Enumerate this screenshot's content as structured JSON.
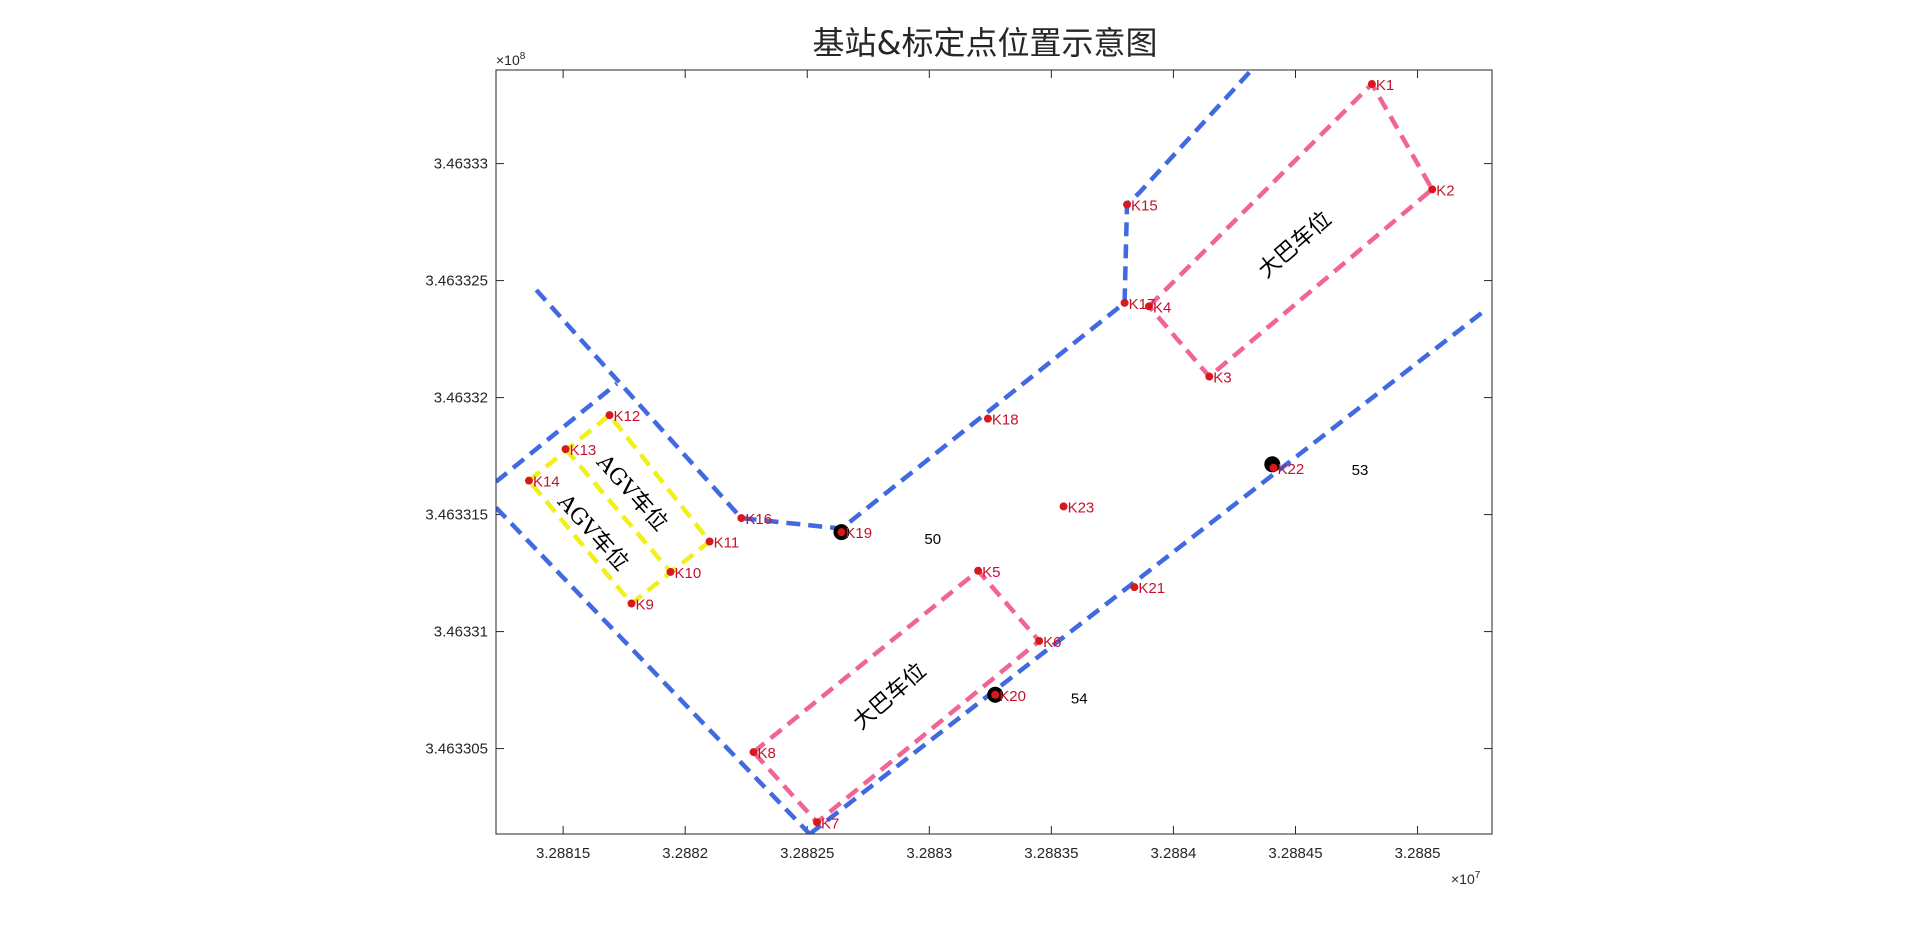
{
  "chart_data": {
    "type": "scatter",
    "title": "基站&标定点位置示意图",
    "xlabel": "",
    "ylabel": "",
    "x_exponent_label": "×10",
    "x_exponent_power": "7",
    "y_exponent_label": "×10",
    "y_exponent_power": "8",
    "xlim": [
      32881225,
      32885305
    ],
    "ylim": [
      346330135,
      346333400
    ],
    "x_ticks": [
      32881500,
      32882000,
      32882500,
      32883000,
      32883500,
      32884000,
      32884500,
      32885000
    ],
    "x_tick_labels": [
      "3.28815",
      "3.2882",
      "3.28825",
      "3.2883",
      "3.28835",
      "3.2884",
      "3.28845",
      "3.2885"
    ],
    "y_ticks": [
      346330500,
      346331000,
      346331500,
      346332000,
      346332500,
      346333000
    ],
    "y_tick_labels": [
      "3.463305",
      "3.46331",
      "3.463315",
      "3.46332",
      "3.463325",
      "3.46333"
    ],
    "grid": false,
    "points": [
      {
        "label": "K1",
        "x": 32884813,
        "y": 346333340
      },
      {
        "label": "K2",
        "x": 32885060,
        "y": 346332890
      },
      {
        "label": "K3",
        "x": 32884147,
        "y": 346332090
      },
      {
        "label": "K4",
        "x": 32883900,
        "y": 346332390
      },
      {
        "label": "K5",
        "x": 32883200,
        "y": 346331260
      },
      {
        "label": "K6",
        "x": 32883450,
        "y": 346330960
      },
      {
        "label": "K7",
        "x": 32882540,
        "y": 346330185
      },
      {
        "label": "K8",
        "x": 32882280,
        "y": 346330485
      },
      {
        "label": "K9",
        "x": 32881780,
        "y": 346331120
      },
      {
        "label": "K10",
        "x": 32881940,
        "y": 346331255
      },
      {
        "label": "K11",
        "x": 32882100,
        "y": 346331385
      },
      {
        "label": "K12",
        "x": 32881690,
        "y": 346331925
      },
      {
        "label": "K13",
        "x": 32881510,
        "y": 346331780
      },
      {
        "label": "K14",
        "x": 32881360,
        "y": 346331645
      },
      {
        "label": "K15",
        "x": 32883810,
        "y": 346332825
      },
      {
        "label": "K16",
        "x": 32882230,
        "y": 346331485
      },
      {
        "label": "K17",
        "x": 32883800,
        "y": 346332405
      },
      {
        "label": "K18",
        "x": 32883240,
        "y": 346331910
      },
      {
        "label": "K19",
        "x": 32882640,
        "y": 346331425
      },
      {
        "label": "K20",
        "x": 32883270,
        "y": 346330730
      },
      {
        "label": "K21",
        "x": 32883840,
        "y": 346331190
      },
      {
        "label": "K22",
        "x": 32884410,
        "y": 346331700
      },
      {
        "label": "K23",
        "x": 32883550,
        "y": 346331535
      }
    ],
    "base_stations": [
      {
        "label": "50",
        "x": 32882640,
        "y": 346331425,
        "text_x": 32882980,
        "text_y": 346331395
      },
      {
        "label": "53",
        "x": 32884405,
        "y": 346331715,
        "text_x": 32884730,
        "text_y": 346331690
      },
      {
        "label": "54",
        "x": 32883270,
        "y": 346330730,
        "text_x": 32883580,
        "text_y": 346330715
      }
    ],
    "boundary_lines": [
      [
        [
          32881390,
          346332460
        ],
        [
          32882230,
          346331485
        ],
        [
          32882640,
          346331440
        ],
        [
          32883800,
          346332405
        ],
        [
          32883810,
          346332825
        ],
        [
          32883860,
          346332875
        ],
        [
          32884320,
          346333400
        ]
      ],
      [
        [
          32881225,
          346331640
        ],
        [
          32881720,
          346332060
        ]
      ],
      [
        [
          32881225,
          346331530
        ],
        [
          32882510,
          346330135
        ]
      ],
      [
        [
          32882510,
          346330135
        ],
        [
          32885285,
          346332380
        ]
      ]
    ],
    "bus_spots": [
      [
        [
          32883900,
          346332390
        ],
        [
          32884813,
          346333340
        ],
        [
          32885060,
          346332890
        ],
        [
          32884147,
          346332090
        ],
        [
          32883900,
          346332390
        ]
      ],
      [
        [
          32882280,
          346330485
        ],
        [
          32883200,
          346331260
        ],
        [
          32883450,
          346330960
        ],
        [
          32882540,
          346330185
        ],
        [
          32882280,
          346330485
        ]
      ]
    ],
    "agv_spots": [
      [
        [
          32881360,
          346331645
        ],
        [
          32881690,
          346331925
        ],
        [
          32882100,
          346331385
        ],
        [
          32881780,
          346331120
        ],
        [
          32881360,
          346331645
        ]
      ],
      [
        [
          32881510,
          346331780
        ],
        [
          32881940,
          346331255
        ]
      ]
    ],
    "region_labels": [
      {
        "text": "大巴车位",
        "x": 32884500,
        "y": 346332650,
        "angle": -41
      },
      {
        "text": "大巴车位",
        "x": 32882840,
        "y": 346330720,
        "angle": -41
      },
      {
        "text": "AGV车位",
        "x": 32881780,
        "y": 346331590,
        "angle": 48
      },
      {
        "text": "AGV车位",
        "x": 32881620,
        "y": 346331420,
        "angle": 48
      }
    ],
    "colors": {
      "boundary": "#4169e1",
      "bus_spot": "#f06595",
      "agv_spot": "#f2ef1a",
      "point": "#d7191c",
      "point_label": "#c8102e",
      "base_station": "#000000",
      "axes": "#262626"
    }
  }
}
